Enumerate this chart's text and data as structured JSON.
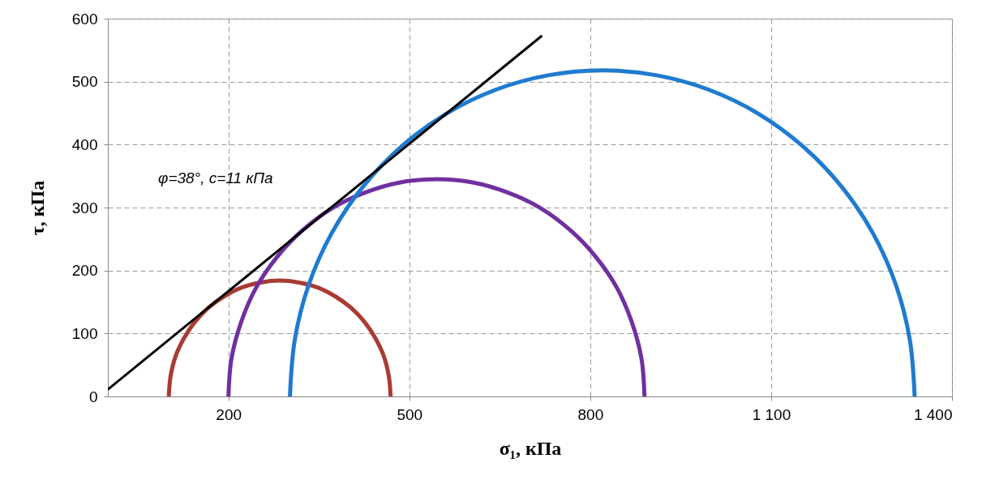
{
  "chart_data": {
    "type": "line",
    "xlabel": "σ₁, кПа",
    "ylabel": "τ, кПа",
    "xlim": [
      0,
      1400
    ],
    "ylim": [
      0,
      600
    ],
    "xticks": [
      200,
      500,
      800,
      {
        "value": 1100,
        "label": "1 100"
      },
      {
        "value": 1400,
        "label": "1 400"
      }
    ],
    "yticks": [
      0,
      100,
      200,
      300,
      400,
      500,
      600
    ],
    "grid": true,
    "line_style": "solid",
    "annotations": [
      "φ=38°, c=11 кПа"
    ],
    "series": [
      {
        "color": "#a93b34",
        "x": [
          469,
          466,
          458,
          444,
          426,
          403,
          377,
          348,
          317,
          285,
          253,
          222,
          193,
          167,
          144,
          126,
          112,
          104,
          101
        ],
        "values": [
          0,
          32,
          63,
          92,
          118,
          141,
          159,
          173,
          181,
          184,
          181,
          173,
          159,
          141,
          118,
          92,
          63,
          32,
          0
        ]
      },
      {
        "color": "#7030a0",
        "x": [
          890,
          885,
          869,
          844,
          809,
          767,
          718,
          663,
          605,
          545,
          485,
          427,
          372,
          323,
          281,
          246,
          221,
          205,
          200
        ],
        "values": [
          0,
          60,
          118,
          173,
          222,
          264,
          299,
          324,
          340,
          345,
          340,
          324,
          299,
          264,
          222,
          173,
          118,
          60,
          0
        ]
      },
      {
        "color": "#1f7bd0",
        "x": [
          1338,
          1330,
          1307,
          1269,
          1217,
          1153,
          1079,
          997,
          910,
          820,
          730,
          643,
          561,
          487,
          423,
          371,
          333,
          310,
          302
        ],
        "values": [
          0,
          90,
          177,
          259,
          333,
          397,
          449,
          487,
          510,
          518,
          510,
          487,
          449,
          397,
          333,
          259,
          177,
          90,
          0
        ]
      },
      {
        "color": "#000000",
        "x": [
          0,
          720
        ],
        "values": [
          11,
          573
        ]
      }
    ]
  }
}
